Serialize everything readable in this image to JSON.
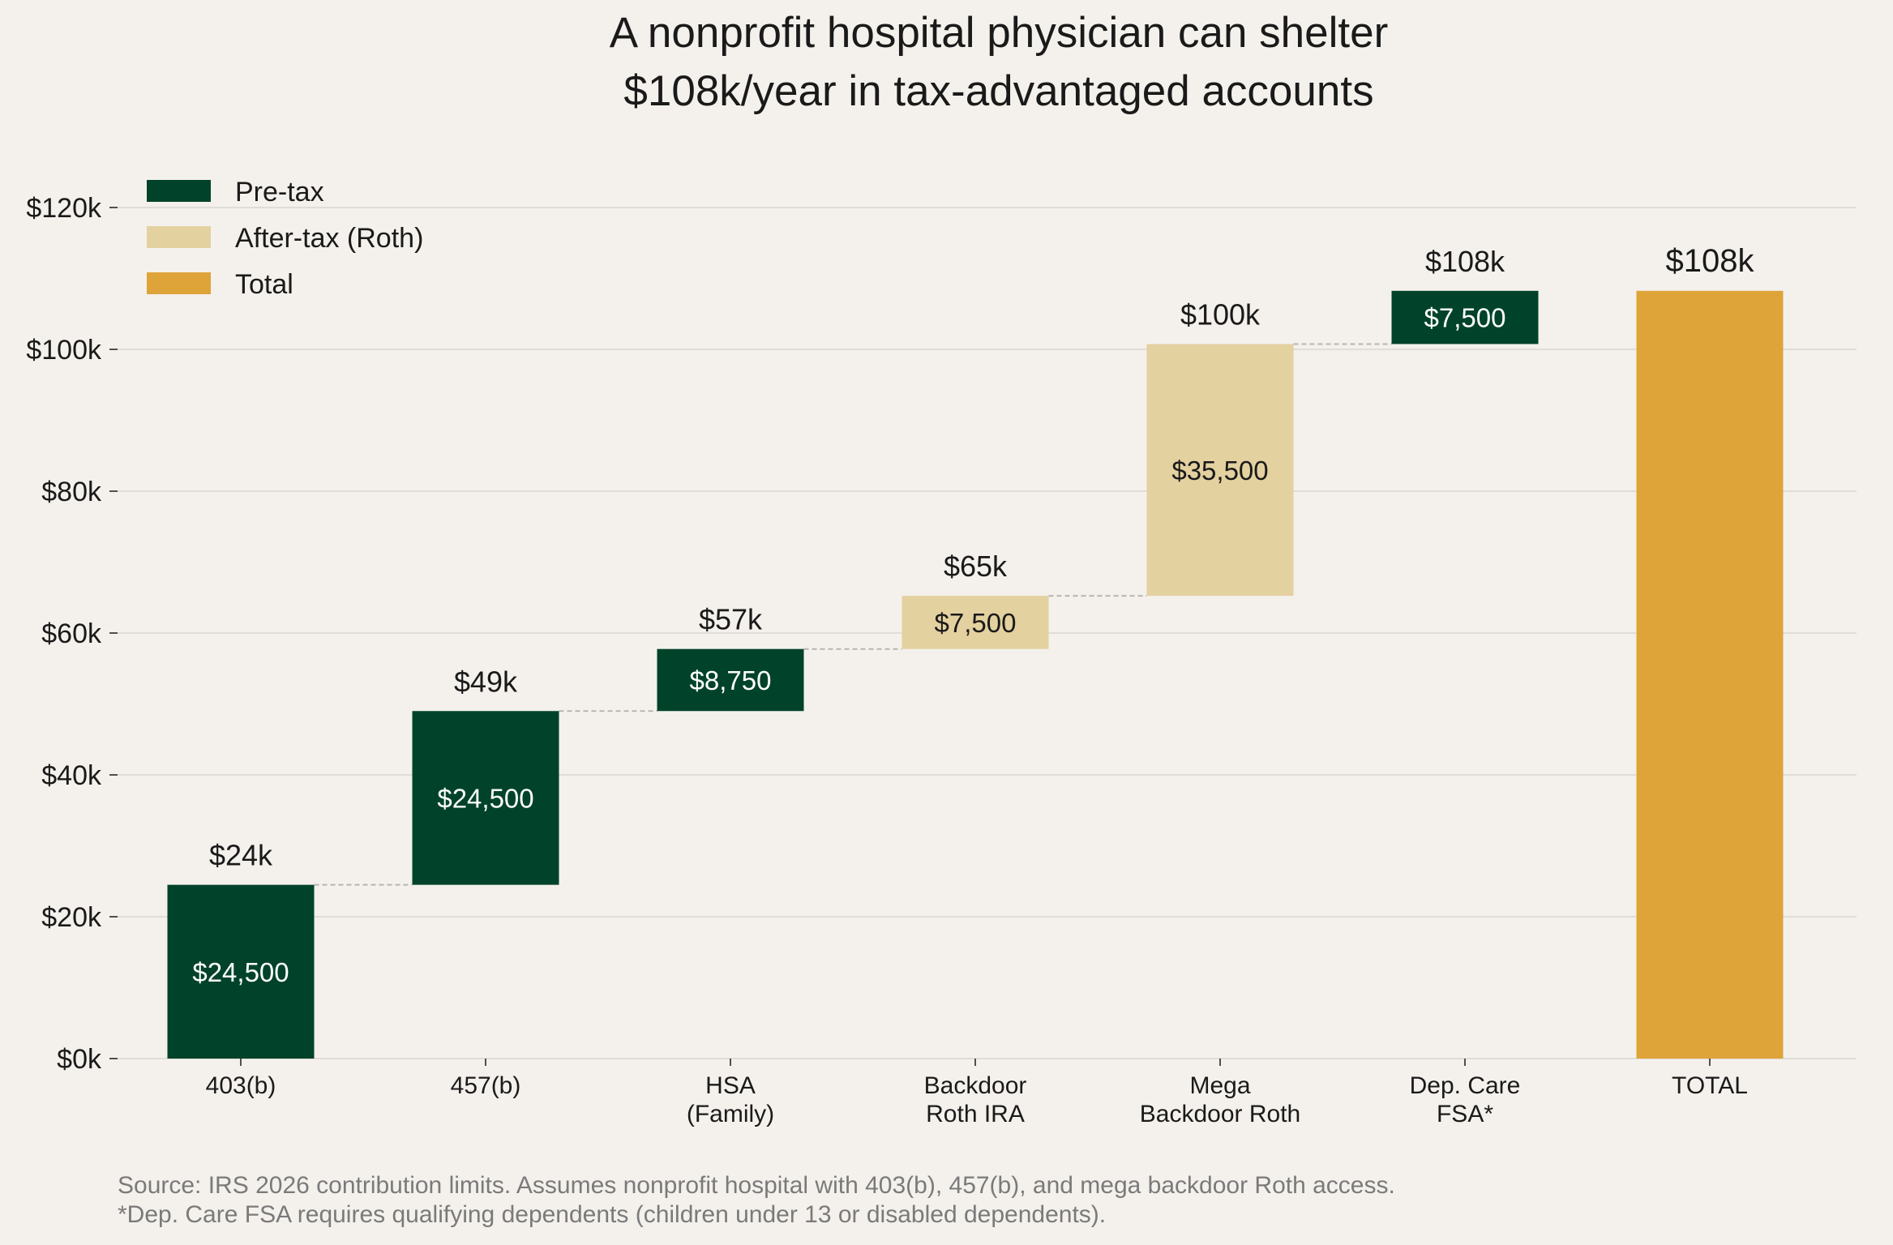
{
  "title_lines": [
    "A nonprofit hospital physician can shelter",
    "$108k/year in tax-advantaged accounts"
  ],
  "footnotes": [
    "Source: IRS 2026 contribution limits. Assumes nonprofit hospital with 403(b), 457(b), and mega backdoor Roth access.",
    "*Dep. Care FSA requires qualifying dependents (children under 13 or disabled dependents)."
  ],
  "colors": {
    "pre_tax": "#00432a",
    "after_tax": "#e4d1a0",
    "total": "#dea43a",
    "grid": "#d9d6d0",
    "connector": "#b5b5b5"
  },
  "legend": [
    {
      "label": "Pre-tax",
      "color": "#00432a"
    },
    {
      "label": "After-tax (Roth)",
      "color": "#e4d1a0"
    },
    {
      "label": "Total",
      "color": "#dea43a"
    }
  ],
  "chart_data": {
    "type": "bar",
    "subtype": "waterfall",
    "title": "A nonprofit hospital physician can shelter $108k/year in tax-advantaged accounts",
    "ylim": [
      0,
      125000
    ],
    "grid": true,
    "legend_position": "top-left",
    "y_ticks": [
      {
        "value": 0,
        "label": "$0k"
      },
      {
        "value": 20000,
        "label": "$20k"
      },
      {
        "value": 40000,
        "label": "$40k"
      },
      {
        "value": 60000,
        "label": "$60k"
      },
      {
        "value": 80000,
        "label": "$80k"
      },
      {
        "value": 100000,
        "label": "$100k"
      },
      {
        "value": 120000,
        "label": "$120k"
      }
    ],
    "bars": [
      {
        "category": [
          "403(b)"
        ],
        "start": 0,
        "value": 24500,
        "kind": "pre_tax",
        "value_label": "$24,500",
        "cumulative_label": "$24k"
      },
      {
        "category": [
          "457(b)"
        ],
        "start": 24500,
        "value": 24500,
        "kind": "pre_tax",
        "value_label": "$24,500",
        "cumulative_label": "$49k"
      },
      {
        "category": [
          "HSA",
          "(Family)"
        ],
        "start": 49000,
        "value": 8750,
        "kind": "pre_tax",
        "value_label": "$8,750",
        "cumulative_label": "$57k"
      },
      {
        "category": [
          "Backdoor",
          "Roth IRA"
        ],
        "start": 57750,
        "value": 7500,
        "kind": "after_tax",
        "value_label": "$7,500",
        "cumulative_label": "$65k"
      },
      {
        "category": [
          "Mega",
          "Backdoor Roth"
        ],
        "start": 65250,
        "value": 35500,
        "kind": "after_tax",
        "value_label": "$35,500",
        "cumulative_label": "$100k"
      },
      {
        "category": [
          "Dep. Care",
          "FSA*"
        ],
        "start": 100750,
        "value": 7500,
        "kind": "pre_tax",
        "value_label": "$7,500",
        "cumulative_label": "$108k"
      },
      {
        "category": [
          "TOTAL"
        ],
        "start": 0,
        "value": 108250,
        "kind": "total",
        "value_label": "",
        "cumulative_label": "$108k"
      }
    ]
  }
}
